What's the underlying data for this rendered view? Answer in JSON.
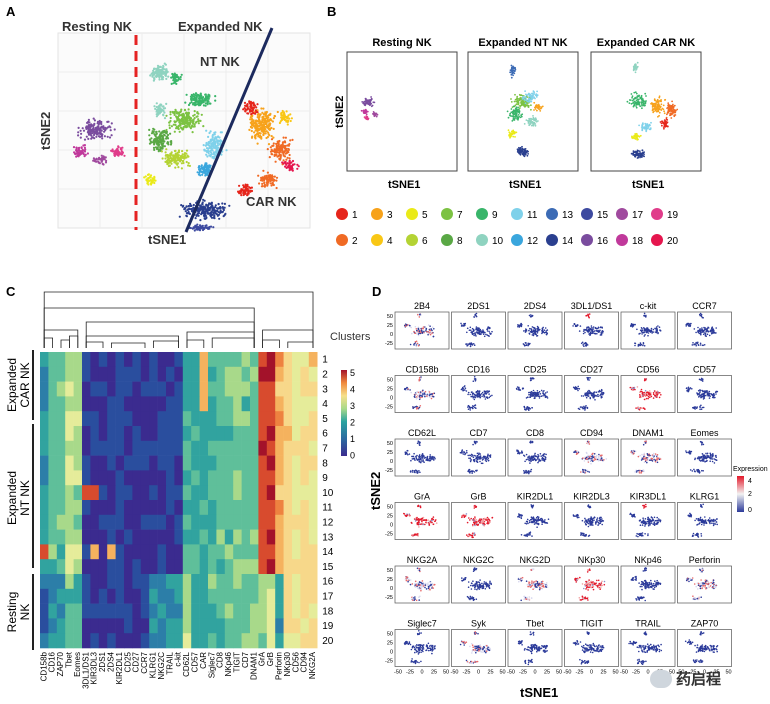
{
  "panels": {
    "A": {
      "letter": "A",
      "labels": {
        "resting": "Resting NK",
        "expanded": "Expanded NK",
        "nt": "NT NK",
        "car": "CAR NK"
      },
      "xlabel": "tSNE1",
      "ylabel": "tSNE2"
    },
    "B": {
      "letter": "B",
      "titles": [
        "Resting NK",
        "Expanded NT NK",
        "Expanded CAR NK"
      ],
      "xlabel": "tSNE1",
      "ylabel": "tSNE2",
      "legend": [
        {
          "n": "1",
          "color": "#e6251b"
        },
        {
          "n": "2",
          "color": "#f06a24"
        },
        {
          "n": "3",
          "color": "#f7a21b"
        },
        {
          "n": "4",
          "color": "#f9c715"
        },
        {
          "n": "5",
          "color": "#eaea18"
        },
        {
          "n": "6",
          "color": "#b4d334"
        },
        {
          "n": "7",
          "color": "#7cc242"
        },
        {
          "n": "8",
          "color": "#5aa845"
        },
        {
          "n": "9",
          "color": "#39b56a"
        },
        {
          "n": "10",
          "color": "#8fd3c0"
        },
        {
          "n": "11",
          "color": "#7fd1ea"
        },
        {
          "n": "12",
          "color": "#3aa6dd"
        },
        {
          "n": "13",
          "color": "#3c6bb5"
        },
        {
          "n": "14",
          "color": "#2a3f8f"
        },
        {
          "n": "15",
          "color": "#3d4aa0"
        },
        {
          "n": "16",
          "color": "#7a4c9e"
        },
        {
          "n": "17",
          "color": "#a04a9e"
        },
        {
          "n": "18",
          "color": "#c0399b"
        },
        {
          "n": "19",
          "color": "#e03c8a"
        },
        {
          "n": "20",
          "color": "#e5164e"
        }
      ]
    },
    "C": {
      "letter": "C",
      "clusters_label": "Clusters",
      "groups": [
        {
          "label_lines": [
            "Expanded",
            "CAR NK"
          ]
        },
        {
          "label_lines": [
            "Expanded",
            "NT NK"
          ]
        },
        {
          "label_lines": [
            "Resting",
            "NK"
          ]
        }
      ],
      "colorbar_ticks": [
        "5",
        "4",
        "3",
        "2",
        "1",
        "0"
      ],
      "markers": [
        "CD158b",
        "CD16",
        "ZAP70",
        "Tbet",
        "Eomes",
        "3DL1/DS1",
        "KIR3DL3",
        "2DS1",
        "2DS4",
        "KIR2DL1",
        "CD25",
        "CD27",
        "CCR7",
        "KLRG1",
        "NKG2C",
        "TRAIL",
        "c-kit",
        "CD62L",
        "CD57",
        "CAR",
        "Siglec7",
        "CD8",
        "NKp46",
        "TIGIT",
        "CD7",
        "DNAM1",
        "GrA",
        "GrB",
        "Perforin",
        "NKp30",
        "CD56",
        "CD94",
        "NKG2A"
      ]
    },
    "D": {
      "letter": "D",
      "xlabel": "tSNE1",
      "ylabel": "tSNE2",
      "legend_title": "Expression",
      "legend_ticks": [
        "4",
        "2",
        "0"
      ],
      "x_ticks": [
        "-50",
        "-25",
        "0",
        "25",
        "50"
      ],
      "y_ticks": [
        "50",
        "25",
        "0",
        "-25"
      ],
      "markers": [
        "2B4",
        "2DS1",
        "2DS4",
        "3DL1/DS1",
        "c-kit",
        "CCR7",
        "CD158b",
        "CD16",
        "CD25",
        "CD27",
        "CD56",
        "CD57",
        "CD62L",
        "CD7",
        "CD8",
        "CD94",
        "DNAM1",
        "Eomes",
        "GrA",
        "GrB",
        "KIR2DL1",
        "KIR2DL3",
        "KIR3DL1",
        "KLRG1",
        "NKG2A",
        "NKG2C",
        "NKG2D",
        "NKp30",
        "NKp46",
        "Perforin",
        "Siglec7",
        "Syk",
        "Tbet",
        "TIGIT",
        "TRAIL",
        "ZAP70"
      ]
    }
  },
  "watermark": "药启程"
}
